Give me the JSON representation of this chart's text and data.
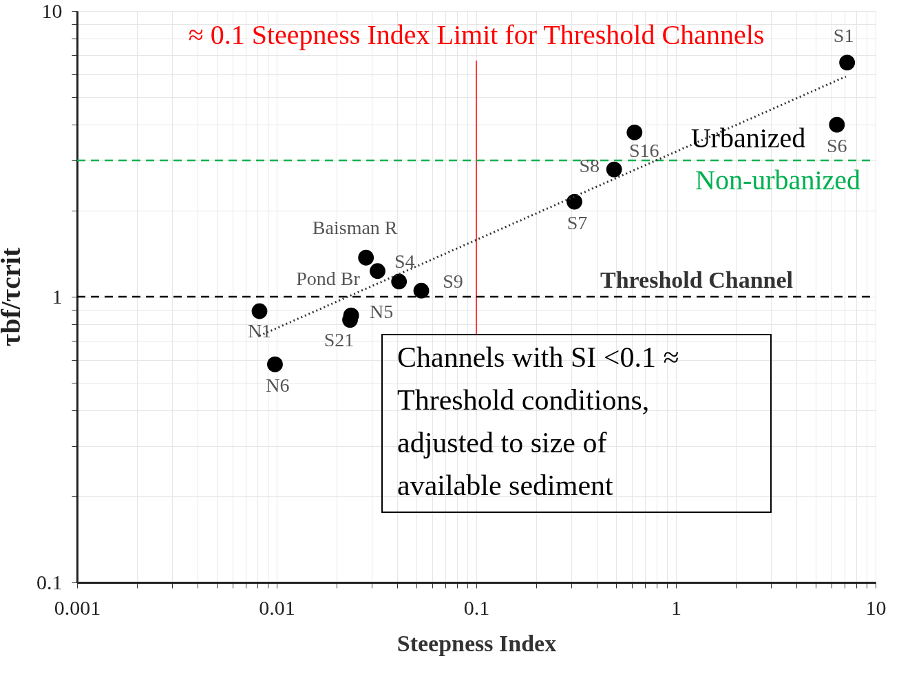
{
  "chart_data": {
    "type": "scatter",
    "xlabel": "Steepness Index",
    "ylabel": "τbf/τcrit",
    "log": "xy",
    "xlim": [
      0.001,
      10
    ],
    "ylim": [
      0.1,
      10
    ],
    "xticks": [
      0.001,
      {
        "value": 0.002,
        "label": null
      },
      {
        "value": 0.003,
        "label": null
      },
      {
        "value": 0.004,
        "label": null
      },
      {
        "value": 0.005,
        "label": null
      },
      {
        "value": 0.006,
        "label": null
      },
      {
        "value": 0.007,
        "label": null
      },
      {
        "value": 0.008,
        "label": null
      },
      {
        "value": 0.009,
        "label": null
      },
      0.01,
      {
        "value": 0.02,
        "label": null
      },
      {
        "value": 0.03,
        "label": null
      },
      {
        "value": 0.04,
        "label": null
      },
      {
        "value": 0.05,
        "label": null
      },
      {
        "value": 0.06,
        "label": null
      },
      {
        "value": 0.07,
        "label": null
      },
      {
        "value": 0.08,
        "label": null
      },
      {
        "value": 0.09,
        "label": null
      },
      0.1,
      {
        "value": 0.2,
        "label": null
      },
      {
        "value": 0.3,
        "label": null
      },
      {
        "value": 0.4,
        "label": null
      },
      {
        "value": 0.5,
        "label": null
      },
      {
        "value": 0.6,
        "label": null
      },
      {
        "value": 0.7,
        "label": null
      },
      {
        "value": 0.8,
        "label": null
      },
      {
        "value": 0.9,
        "label": null
      },
      1,
      {
        "value": 2,
        "label": null
      },
      {
        "value": 3,
        "label": null
      },
      {
        "value": 4,
        "label": null
      },
      {
        "value": 5,
        "label": null
      },
      {
        "value": 6,
        "label": null
      },
      {
        "value": 7,
        "label": null
      },
      {
        "value": 8,
        "label": null
      },
      {
        "value": 9,
        "label": null
      },
      10
    ],
    "yticks": [
      0.1,
      {
        "value": 0.2,
        "label": null
      },
      {
        "value": 0.3,
        "label": null
      },
      {
        "value": 0.4,
        "label": null
      },
      {
        "value": 0.5,
        "label": null
      },
      {
        "value": 0.6,
        "label": null
      },
      {
        "value": 0.7,
        "label": null
      },
      {
        "value": 0.8,
        "label": null
      },
      {
        "value": 0.9,
        "label": null
      },
      1,
      {
        "value": 2,
        "label": null
      },
      {
        "value": 3,
        "label": null
      },
      {
        "value": 4,
        "label": null
      },
      {
        "value": 5,
        "label": null
      },
      {
        "value": 6,
        "label": null
      },
      {
        "value": 7,
        "label": null
      },
      {
        "value": 8,
        "label": null
      },
      {
        "value": 9,
        "label": null
      },
      10
    ],
    "grid": true,
    "series": [
      {
        "color": "#000000",
        "marker": "circle",
        "x": [
          7.2,
          6.4,
          0.62,
          0.49,
          0.31,
          0.028,
          0.032,
          0.041,
          0.053,
          0.0082,
          0.0236,
          0.0233,
          0.0098
        ],
        "values": [
          6.6,
          4.0,
          3.76,
          2.79,
          2.15,
          1.37,
          1.23,
          1.13,
          1.05,
          0.89,
          0.86,
          0.83,
          0.58
        ]
      },
      {
        "type": "line",
        "line_style": "dotted",
        "color": "#333333",
        "x": [
          0.0082,
          7.1
        ],
        "values": [
          0.73,
          5.9
        ]
      }
    ],
    "ref_lines": [
      {
        "axis": "x",
        "value": 0.1,
        "label": "≈ 0.1 Steepness  Index  Limit for Threshold Channels",
        "color": "#ff0000",
        "line_style": "solid"
      },
      {
        "axis": "y",
        "value": 1,
        "label": "Threshold Channel",
        "color": "#000000",
        "line_style": "dashed"
      },
      {
        "axis": "y",
        "value": 3,
        "label": "Non-urbanized",
        "color": "#00b050",
        "line_style": "dashed"
      }
    ],
    "annotations": [
      {
        "text": "S1",
        "x": 7.2,
        "y": 6.6
      },
      {
        "text": "S6",
        "x": 6.4,
        "y": 4.0
      },
      {
        "text": "S16",
        "x": 0.62,
        "y": 3.76
      },
      {
        "text": "S8",
        "x": 0.49,
        "y": 2.79
      },
      {
        "text": "S7",
        "x": 0.31,
        "y": 2.15
      },
      {
        "text": "Baisman R",
        "x": 0.028,
        "y": 1.37
      },
      {
        "text": "Pond Br",
        "x": 0.032,
        "y": 1.23
      },
      {
        "text": "S4",
        "x": 0.041,
        "y": 1.13
      },
      {
        "text": "S9",
        "x": 0.053,
        "y": 1.05
      },
      {
        "text": "N1",
        "x": 0.0082,
        "y": 0.89
      },
      {
        "text": "N5",
        "x": 0.0236,
        "y": 0.86
      },
      {
        "text": "S21",
        "x": 0.0233,
        "y": 0.83
      },
      {
        "text": "N6",
        "x": 0.0098,
        "y": 0.58
      },
      "Urbanized",
      "Channels with SI <0.1 ≈ Threshold conditions, adjusted to size of available sediment"
    ]
  }
}
